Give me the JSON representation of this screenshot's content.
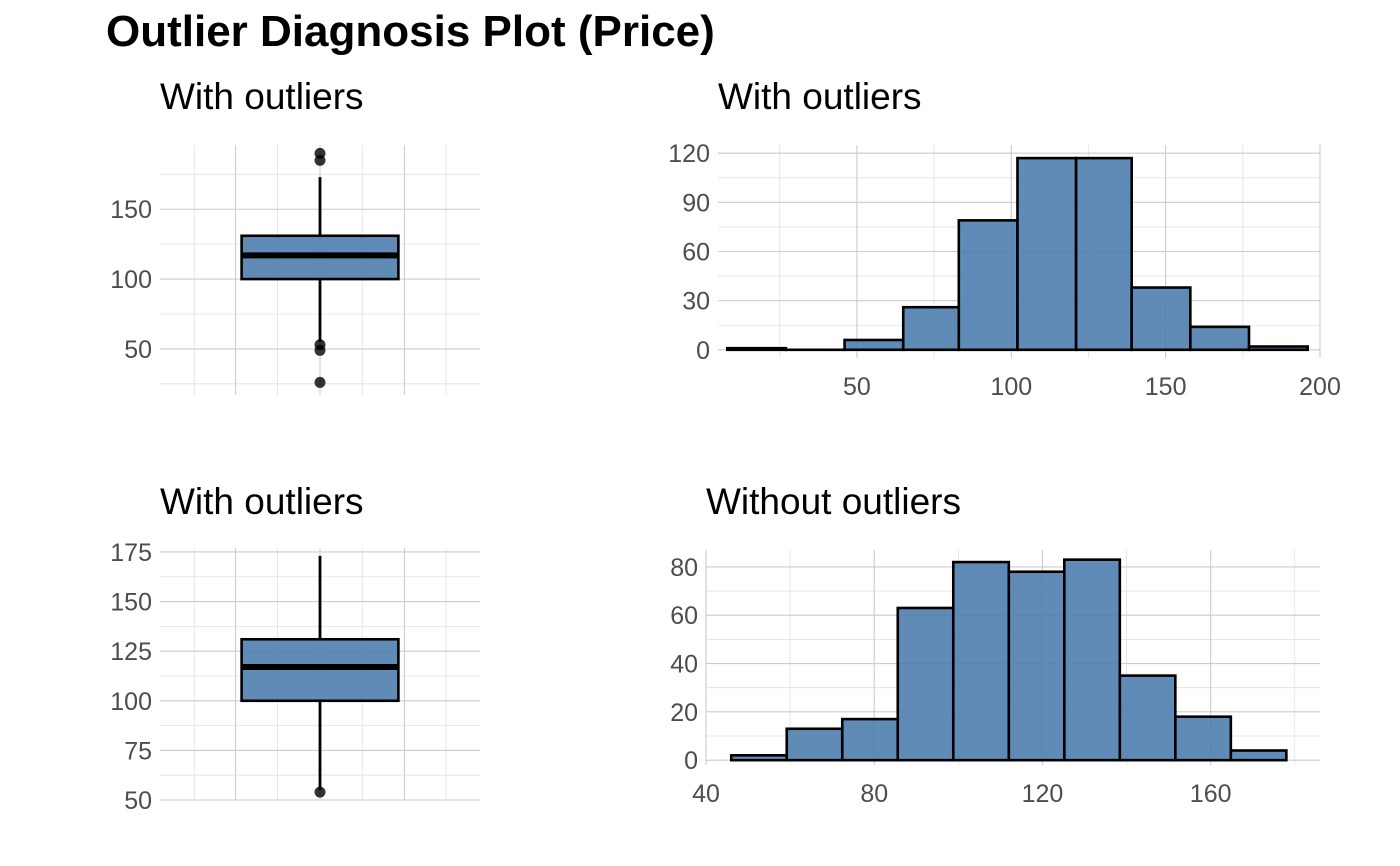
{
  "title": "Outlier Diagnosis Plot (Price)",
  "chart_data": [
    {
      "id": "box_with",
      "type": "boxplot",
      "title": "With outliers",
      "ylim": [
        17,
        196
      ],
      "y_ticks": [
        50,
        100,
        150
      ],
      "y_minor": [
        25,
        75,
        125,
        175
      ],
      "box": {
        "q1": 100,
        "median": 117,
        "q3": 131,
        "whisker_low": 55,
        "whisker_high": 173
      },
      "outliers": [
        26,
        49,
        53,
        185,
        190
      ],
      "grid": true
    },
    {
      "id": "hist_with",
      "type": "bar",
      "title": "With outliers",
      "xlim": [
        5,
        200
      ],
      "ylim": [
        -5,
        125
      ],
      "x_ticks": [
        50,
        100,
        150,
        200
      ],
      "x_minor": [
        25,
        75,
        125,
        175
      ],
      "y_ticks": [
        0,
        30,
        60,
        90,
        120
      ],
      "y_minor": [
        15,
        45,
        75,
        105
      ],
      "bins": [
        {
          "x0": 8,
          "x1": 27,
          "count": 1
        },
        {
          "x0": 27,
          "x1": 46,
          "count": 0
        },
        {
          "x0": 46,
          "x1": 65,
          "count": 6
        },
        {
          "x0": 65,
          "x1": 83,
          "count": 26
        },
        {
          "x0": 83,
          "x1": 102,
          "count": 79
        },
        {
          "x0": 102,
          "x1": 121,
          "count": 117
        },
        {
          "x0": 121,
          "x1": 139,
          "count": 117
        },
        {
          "x0": 139,
          "x1": 158,
          "count": 38
        },
        {
          "x0": 158,
          "x1": 177,
          "count": 14
        },
        {
          "x0": 177,
          "x1": 196,
          "count": 2
        }
      ],
      "grid": true
    },
    {
      "id": "box_without",
      "type": "boxplot",
      "title": "With outliers",
      "ylim": [
        50,
        177
      ],
      "y_ticks": [
        50,
        75,
        100,
        125,
        150,
        175
      ],
      "y_minor": [
        62.5,
        87.5,
        112.5,
        137.5,
        162.5
      ],
      "box": {
        "q1": 100,
        "median": 117,
        "q3": 131,
        "whisker_low": 55,
        "whisker_high": 173
      },
      "outliers": [
        54
      ],
      "grid": true
    },
    {
      "id": "hist_without",
      "type": "bar",
      "title": "Without outliers",
      "xlim": [
        40,
        186
      ],
      "ylim": [
        -2,
        87
      ],
      "x_ticks": [
        40,
        80,
        120,
        160
      ],
      "x_minor": [
        60,
        100,
        140,
        180
      ],
      "y_ticks": [
        0,
        20,
        40,
        60,
        80
      ],
      "y_minor": [
        10,
        30,
        50,
        70
      ],
      "bins": [
        {
          "x0": 46,
          "x1": 59.2,
          "count": 2
        },
        {
          "x0": 59.2,
          "x1": 72.4,
          "count": 13
        },
        {
          "x0": 72.4,
          "x1": 85.6,
          "count": 17
        },
        {
          "x0": 85.6,
          "x1": 98.8,
          "count": 63
        },
        {
          "x0": 98.8,
          "x1": 112,
          "count": 82
        },
        {
          "x0": 112,
          "x1": 125.2,
          "count": 78
        },
        {
          "x0": 125.2,
          "x1": 138.4,
          "count": 83
        },
        {
          "x0": 138.4,
          "x1": 151.6,
          "count": 35
        },
        {
          "x0": 151.6,
          "x1": 164.8,
          "count": 18
        },
        {
          "x0": 164.8,
          "x1": 178,
          "count": 4
        }
      ],
      "grid": true
    }
  ]
}
